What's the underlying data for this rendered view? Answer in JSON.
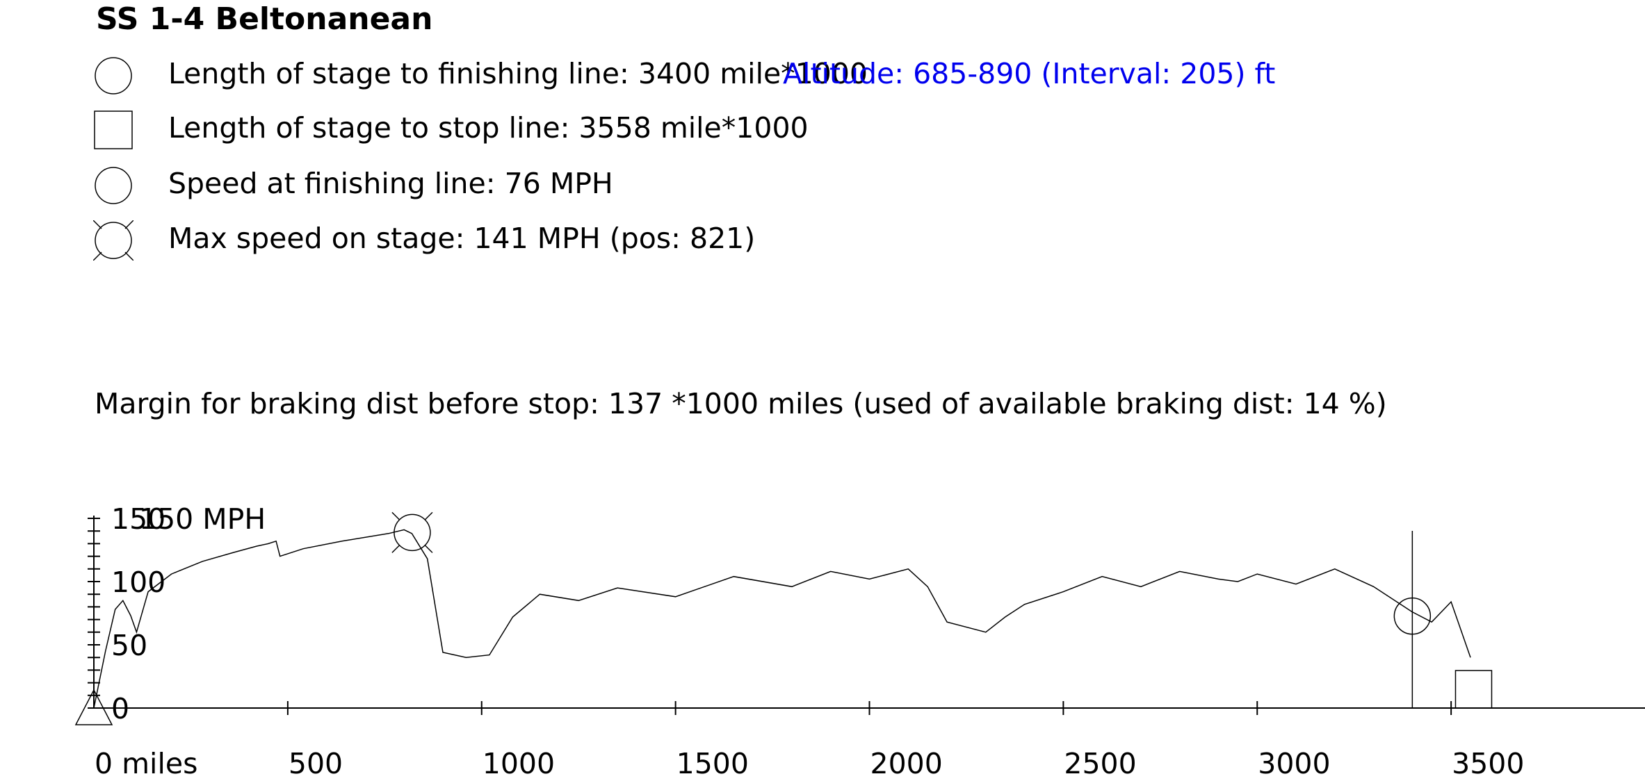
{
  "title": "SS 1-4 Beltonanean",
  "legend": [
    {
      "icon": "circle-icon",
      "text": "Length of stage to finishing line: 3400 mile*1000"
    },
    {
      "icon": "square-icon",
      "text": "Length of stage to stop line: 3558 mile*1000"
    },
    {
      "icon": "circle-icon",
      "text": "Speed at finishing line: 76 MPH"
    },
    {
      "icon": "crossed-circle-icon",
      "text": "Max speed on stage: 141 MPH (pos: 821)"
    }
  ],
  "altitude": "Altitude: 685-890 (Interval: 205) ft",
  "margin": "Margin for braking dist before stop: 137 *1000 miles (used of available braking dist: 14 %)",
  "chart_data": {
    "type": "line",
    "xlim": [
      0,
      4000
    ],
    "ylim": [
      0,
      150
    ],
    "x_ticks": [
      0,
      500,
      1000,
      1500,
      2000,
      2500,
      3000,
      3500
    ],
    "x_tick_labels": [
      "0 miles",
      "500",
      "1000",
      "1500",
      "2000",
      "2500",
      "3000",
      "3500"
    ],
    "y_ticks": [
      0,
      50,
      100,
      150
    ],
    "y_tick_labels": [
      "0",
      "50",
      "100",
      "150"
    ],
    "y_top_label": "150 MPH",
    "finish_line_x": 3400,
    "stop_line_x": 3558,
    "finish_speed": 76,
    "max_speed": {
      "x": 821,
      "y": 141
    },
    "series": [
      {
        "x": [
          0,
          30,
          55,
          75,
          95,
          110,
          140,
          200,
          280,
          360,
          420,
          450,
          470,
          480,
          540,
          640,
          760,
          800,
          820,
          860,
          900,
          960,
          1020,
          1080,
          1150,
          1250,
          1350,
          1500,
          1650,
          1800,
          1900,
          2000,
          2100,
          2150,
          2200,
          2300,
          2350,
          2400,
          2500,
          2600,
          2700,
          2800,
          2900,
          2950,
          3000,
          3100,
          3200,
          3300,
          3400,
          3450,
          3500,
          3550
        ],
        "y": [
          0,
          45,
          78,
          85,
          73,
          60,
          92,
          106,
          116,
          123,
          128,
          130,
          132,
          120,
          126,
          132,
          138,
          141,
          138,
          118,
          44,
          40,
          42,
          72,
          90,
          85,
          95,
          88,
          104,
          96,
          108,
          102,
          110,
          96,
          68,
          60,
          72,
          82,
          92,
          104,
          96,
          108,
          102,
          100,
          106,
          98,
          110,
          96,
          76,
          68,
          84,
          40
        ]
      }
    ]
  }
}
